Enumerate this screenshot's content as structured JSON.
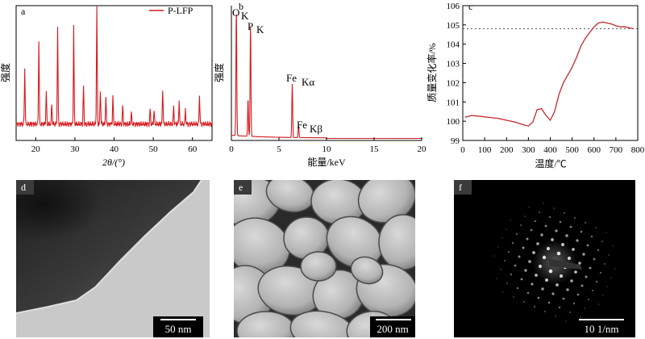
{
  "panels": {
    "a": {
      "letter": "a"
    },
    "b": {
      "letter": "b"
    },
    "c": {
      "letter": "c"
    },
    "d": {
      "letter": "d",
      "scalebar": "50 nm"
    },
    "e": {
      "letter": "e",
      "scalebar": "200 nm"
    },
    "f": {
      "letter": "f",
      "scalebar": "10 1/nm"
    }
  },
  "colors": {
    "series": "#d7191c",
    "axis": "#000000"
  },
  "chart_data": [
    {
      "type": "line",
      "panel": "a",
      "xlabel": "2θ/(°)",
      "ylabel": "强度",
      "xlim": [
        15,
        65
      ],
      "xticks": [
        "20",
        "30",
        "40",
        "50",
        "60"
      ],
      "legend_position": "top-right",
      "series": [
        {
          "name": "P-LFP",
          "peaks": [
            {
              "x": 17.2,
              "y": 48
            },
            {
              "x": 20.8,
              "y": 72
            },
            {
              "x": 22.7,
              "y": 28
            },
            {
              "x": 24.1,
              "y": 18
            },
            {
              "x": 25.6,
              "y": 82
            },
            {
              "x": 29.7,
              "y": 85
            },
            {
              "x": 32.2,
              "y": 33
            },
            {
              "x": 35.6,
              "y": 100
            },
            {
              "x": 36.5,
              "y": 30
            },
            {
              "x": 37.9,
              "y": 24
            },
            {
              "x": 39.7,
              "y": 25
            },
            {
              "x": 42.2,
              "y": 16
            },
            {
              "x": 44.4,
              "y": 10
            },
            {
              "x": 49.2,
              "y": 13
            },
            {
              "x": 50.2,
              "y": 12
            },
            {
              "x": 52.4,
              "y": 31
            },
            {
              "x": 55.2,
              "y": 15
            },
            {
              "x": 56.6,
              "y": 20
            },
            {
              "x": 58.2,
              "y": 13
            },
            {
              "x": 61.8,
              "y": 26
            }
          ]
        }
      ]
    },
    {
      "type": "line",
      "panel": "b",
      "xlabel": "能量/keV",
      "ylabel": "强度",
      "xlim": [
        0,
        20
      ],
      "xticks": [
        "0",
        "5",
        "10",
        "15",
        "20"
      ],
      "annotations": [
        "O",
        "K",
        "P",
        "K",
        "Fe",
        "Kα",
        "Fe",
        "Kβ"
      ],
      "series": [
        {
          "peaks": [
            {
              "x": 0.52,
              "y": 100
            },
            {
              "x": 2.01,
              "y": 88
            },
            {
              "x": 1.75,
              "y": 30
            },
            {
              "x": 6.4,
              "y": 42
            },
            {
              "x": 7.06,
              "y": 10
            }
          ]
        }
      ]
    },
    {
      "type": "line",
      "panel": "c",
      "xlabel": "温度/℃",
      "ylabel": "质量变化率/%",
      "xlim": [
        0,
        800
      ],
      "ylim": [
        99,
        106
      ],
      "xticks": [
        "0",
        "100",
        "200",
        "300",
        "400",
        "500",
        "600",
        "700",
        "800"
      ],
      "yticks": [
        "99",
        "100",
        "101",
        "102",
        "103",
        "104",
        "105",
        "106"
      ],
      "reference_line_y": 104.8,
      "series": [
        {
          "x": [
            10,
            40,
            80,
            120,
            160,
            200,
            240,
            280,
            300,
            320,
            340,
            360,
            380,
            400,
            420,
            440,
            460,
            480,
            500,
            520,
            540,
            560,
            580,
            600,
            620,
            640,
            660,
            680,
            700,
            720,
            740,
            760,
            780
          ],
          "y": [
            100.2,
            100.3,
            100.25,
            100.2,
            100.15,
            100.05,
            99.95,
            99.8,
            99.75,
            99.95,
            100.6,
            100.65,
            100.3,
            100.05,
            100.5,
            101.4,
            102.0,
            102.4,
            102.8,
            103.3,
            103.9,
            104.3,
            104.6,
            104.9,
            105.1,
            105.15,
            105.1,
            105.05,
            104.95,
            104.9,
            104.9,
            104.85,
            104.8
          ]
        }
      ]
    }
  ]
}
